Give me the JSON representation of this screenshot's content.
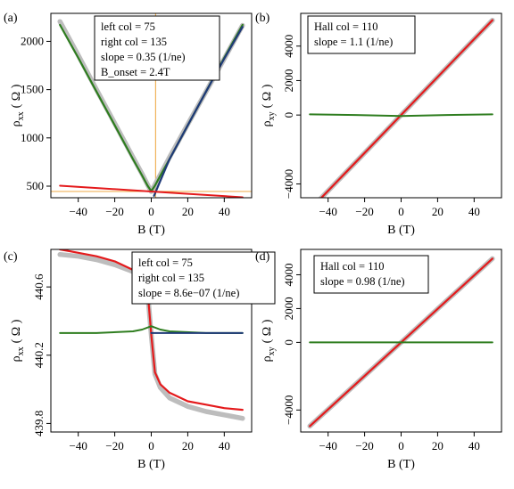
{
  "chart_data": [
    {
      "panel": "(a)",
      "type": "line",
      "xlabel": "B (T)",
      "ylabel_main": "ρ",
      "ylabel_sub": "xx",
      "ylabel_unit": "( Ω )",
      "xlim": [
        -55,
        55
      ],
      "ylim": [
        380,
        2290
      ],
      "xticks": [
        -40,
        -20,
        0,
        20,
        40
      ],
      "yticks": [
        500,
        1000,
        1500,
        2000
      ],
      "annotation": [
        "left col = 75",
        "right col = 135",
        "slope = 0.35 (1/ne)",
        "B_onset = 2.4T"
      ],
      "reference_lines": {
        "vertical_x": 2.4,
        "horizontal_y": 445
      },
      "series": [
        {
          "role": "data",
          "color": "#bdbdbd",
          "x": [
            -50,
            -40,
            -30,
            -20,
            -10,
            -5,
            -2,
            0,
            2,
            5,
            10,
            20,
            30,
            40,
            50
          ],
          "y": [
            2205,
            1855,
            1500,
            1150,
            800,
            625,
            515,
            445,
            515,
            620,
            800,
            1140,
            1480,
            1820,
            2165
          ]
        },
        {
          "role": "fit-left",
          "color": "#2e7d1f",
          "x": [
            -50,
            -40,
            -30,
            -20,
            -10,
            -5,
            -2,
            0,
            2,
            5,
            10,
            20,
            30,
            40,
            50
          ],
          "y": [
            2170,
            1830,
            1480,
            1130,
            780,
            610,
            505,
            448,
            505,
            610,
            780,
            1130,
            1480,
            1830,
            2170
          ]
        },
        {
          "role": "fit-right",
          "color": "#1f3a78",
          "x": [
            1.5,
            10,
            20,
            30,
            40,
            50
          ],
          "y": [
            400,
            780,
            1130,
            1480,
            1820,
            2150
          ]
        },
        {
          "role": "residual",
          "color": "#e41a1c",
          "x": [
            -50,
            -25,
            0,
            25,
            50
          ],
          "y": [
            505,
            475,
            445,
            415,
            385
          ]
        }
      ]
    },
    {
      "panel": "(b)",
      "type": "line",
      "xlabel": "B (T)",
      "ylabel_main": "ρ",
      "ylabel_sub": "xy",
      "ylabel_unit": "( Ω )",
      "xlim": [
        -55,
        55
      ],
      "ylim": [
        -4800,
        5900
      ],
      "xticks": [
        -40,
        -20,
        0,
        20,
        40
      ],
      "yticks": [
        -4000,
        0,
        2000,
        4000
      ],
      "annotation": [
        "Hall col = 110",
        "slope = 1.1 (1/ne)"
      ],
      "series": [
        {
          "role": "data",
          "color": "#bdbdbd",
          "x": [
            -50,
            -25,
            0,
            25,
            50
          ],
          "y": [
            -5500,
            -2750,
            0,
            2750,
            5500
          ]
        },
        {
          "role": "fit",
          "color": "#e41a1c",
          "x": [
            -50,
            -25,
            0,
            25,
            50
          ],
          "y": [
            -5500,
            -2750,
            0,
            2750,
            5500
          ]
        },
        {
          "role": "residual",
          "color": "#2e7d1f",
          "x": [
            -50,
            -25,
            0,
            25,
            50
          ],
          "y": [
            40,
            0,
            -60,
            0,
            40
          ]
        }
      ]
    },
    {
      "panel": "(c)",
      "type": "line",
      "xlabel": "B (T)",
      "ylabel_main": "ρ",
      "ylabel_sub": "xx",
      "ylabel_unit": "( Ω )",
      "xlim": [
        -55,
        55
      ],
      "ylim": [
        439.75,
        440.82
      ],
      "xticks": [
        -40,
        -20,
        0,
        20,
        40
      ],
      "yticks": [
        439.8,
        440.2,
        440.6
      ],
      "annotation": [
        "left col = 75",
        "right col = 135",
        "slope = 8.6e−07 (1/ne)"
      ],
      "series": [
        {
          "role": "data",
          "color": "#bdbdbd",
          "x": [
            -50,
            -40,
            -30,
            -20,
            -10,
            -5,
            -2,
            0,
            2,
            5,
            10,
            20,
            30,
            40,
            50
          ],
          "y": [
            440.79,
            440.78,
            440.76,
            440.73,
            440.69,
            440.64,
            440.57,
            440.32,
            440.09,
            440.01,
            439.95,
            439.9,
            439.87,
            439.85,
            439.83
          ]
        },
        {
          "role": "fit",
          "color": "#e41a1c",
          "x": [
            -50,
            -40,
            -30,
            -20,
            -10,
            -5,
            -2,
            0,
            2,
            5,
            10,
            20,
            30,
            40,
            50
          ],
          "y": [
            440.82,
            440.8,
            440.78,
            440.75,
            440.7,
            440.65,
            440.58,
            440.32,
            440.1,
            440.03,
            439.98,
            439.93,
            439.91,
            439.89,
            439.88
          ]
        },
        {
          "role": "residual",
          "color": "#2e7d1f",
          "x": [
            -50,
            -30,
            -10,
            -5,
            0,
            5,
            10,
            30,
            50
          ],
          "y": [
            440.33,
            440.33,
            440.34,
            440.35,
            440.37,
            440.35,
            440.34,
            440.33,
            440.33
          ]
        },
        {
          "role": "baseline",
          "color": "#1f3a78",
          "x": [
            0,
            50
          ],
          "y": [
            440.33,
            440.33
          ]
        }
      ]
    },
    {
      "panel": "(d)",
      "type": "line",
      "xlabel": "B (T)",
      "ylabel_main": "ρ",
      "ylabel_sub": "xy",
      "ylabel_unit": "( Ω )",
      "xlim": [
        -55,
        55
      ],
      "ylim": [
        -5300,
        5500
      ],
      "xticks": [
        -40,
        -20,
        0,
        20,
        40
      ],
      "yticks": [
        -4000,
        0,
        2000,
        4000
      ],
      "annotation": [
        "Hall col = 110",
        "slope = 0.98 (1/ne)"
      ],
      "series": [
        {
          "role": "data",
          "color": "#bdbdbd",
          "x": [
            -50,
            -25,
            0,
            25,
            50
          ],
          "y": [
            -4950,
            -2475,
            0,
            2475,
            4950
          ]
        },
        {
          "role": "fit",
          "color": "#e41a1c",
          "x": [
            -50,
            -25,
            0,
            25,
            50
          ],
          "y": [
            -4950,
            -2475,
            0,
            2475,
            4950
          ]
        },
        {
          "role": "residual",
          "color": "#2e7d1f",
          "x": [
            -50,
            0,
            50
          ],
          "y": [
            0,
            0,
            0
          ]
        }
      ]
    }
  ]
}
